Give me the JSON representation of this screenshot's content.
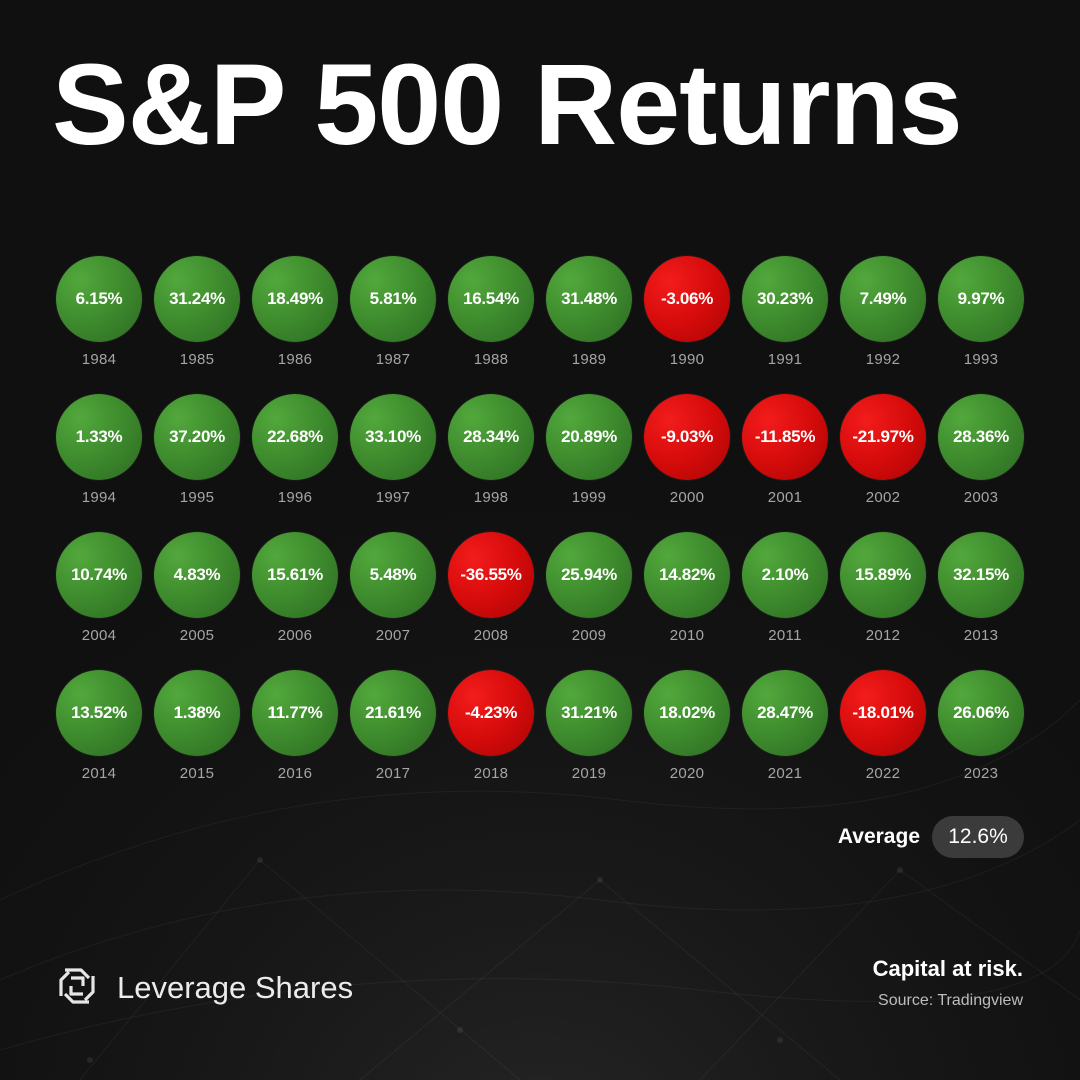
{
  "title": "S&P 500 Returns",
  "chart_data": {
    "type": "table",
    "rows": [
      [
        {
          "year": "1984",
          "return": "6.15%",
          "value": 6.15
        },
        {
          "year": "1985",
          "return": "31.24%",
          "value": 31.24
        },
        {
          "year": "1986",
          "return": "18.49%",
          "value": 18.49
        },
        {
          "year": "1987",
          "return": "5.81%",
          "value": 5.81
        },
        {
          "year": "1988",
          "return": "16.54%",
          "value": 16.54
        },
        {
          "year": "1989",
          "return": "31.48%",
          "value": 31.48
        },
        {
          "year": "1990",
          "return": "-3.06%",
          "value": -3.06
        },
        {
          "year": "1991",
          "return": "30.23%",
          "value": 30.23
        },
        {
          "year": "1992",
          "return": "7.49%",
          "value": 7.49
        },
        {
          "year": "1993",
          "return": "9.97%",
          "value": 9.97
        }
      ],
      [
        {
          "year": "1994",
          "return": "1.33%",
          "value": 1.33
        },
        {
          "year": "1995",
          "return": "37.20%",
          "value": 37.2
        },
        {
          "year": "1996",
          "return": "22.68%",
          "value": 22.68
        },
        {
          "year": "1997",
          "return": "33.10%",
          "value": 33.1
        },
        {
          "year": "1998",
          "return": "28.34%",
          "value": 28.34
        },
        {
          "year": "1999",
          "return": "20.89%",
          "value": 20.89
        },
        {
          "year": "2000",
          "return": "-9.03%",
          "value": -9.03
        },
        {
          "year": "2001",
          "return": "-11.85%",
          "value": -11.85
        },
        {
          "year": "2002",
          "return": "-21.97%",
          "value": -21.97
        },
        {
          "year": "2003",
          "return": "28.36%",
          "value": 28.36
        }
      ],
      [
        {
          "year": "2004",
          "return": "10.74%",
          "value": 10.74
        },
        {
          "year": "2005",
          "return": "4.83%",
          "value": 4.83
        },
        {
          "year": "2006",
          "return": "15.61%",
          "value": 15.61
        },
        {
          "year": "2007",
          "return": "5.48%",
          "value": 5.48
        },
        {
          "year": "2008",
          "return": "-36.55%",
          "value": -36.55
        },
        {
          "year": "2009",
          "return": "25.94%",
          "value": 25.94
        },
        {
          "year": "2010",
          "return": "14.82%",
          "value": 14.82
        },
        {
          "year": "2011",
          "return": "2.10%",
          "value": 2.1
        },
        {
          "year": "2012",
          "return": "15.89%",
          "value": 15.89
        },
        {
          "year": "2013",
          "return": "32.15%",
          "value": 32.15
        }
      ],
      [
        {
          "year": "2014",
          "return": "13.52%",
          "value": 13.52
        },
        {
          "year": "2015",
          "return": "1.38%",
          "value": 1.38
        },
        {
          "year": "2016",
          "return": "11.77%",
          "value": 11.77
        },
        {
          "year": "2017",
          "return": "21.61%",
          "value": 21.61
        },
        {
          "year": "2018",
          "return": "-4.23%",
          "value": -4.23
        },
        {
          "year": "2019",
          "return": "31.21%",
          "value": 31.21
        },
        {
          "year": "2020",
          "return": "18.02%",
          "value": 18.02
        },
        {
          "year": "2021",
          "return": "28.47%",
          "value": 28.47
        },
        {
          "year": "2022",
          "return": "-18.01%",
          "value": -18.01
        },
        {
          "year": "2023",
          "return": "26.06%",
          "value": 26.06
        }
      ]
    ],
    "colors": {
      "positive": "#3f8d2e",
      "negative": "#d60b0b"
    }
  },
  "average": {
    "label": "Average",
    "value": "12.6%"
  },
  "footer": {
    "brand": "Leverage Shares",
    "brand_icon": "leverage-shares-logo-icon",
    "risk_notice": "Capital at risk.",
    "source": "Source: Tradingview"
  },
  "colors": {
    "background": "#101010",
    "pill": "#3b3b3b",
    "year_text": "#a5a5a5"
  }
}
